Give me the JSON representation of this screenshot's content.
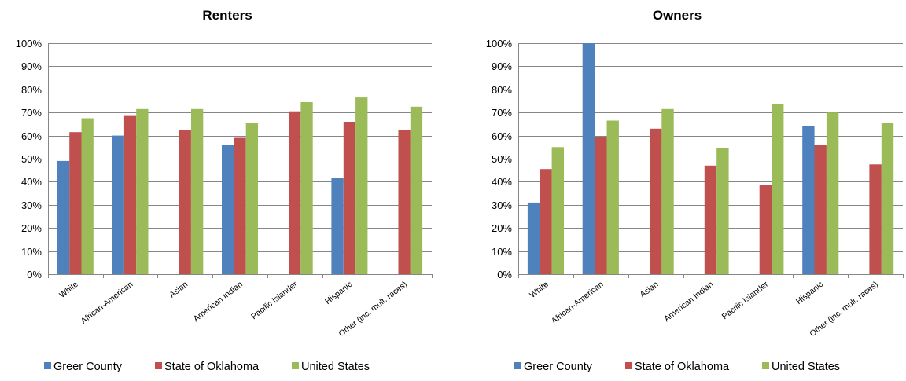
{
  "chart_data": [
    {
      "type": "bar",
      "title": "Renters",
      "categories": [
        "White",
        "African-American",
        "Asian",
        "American Indian",
        "Pacific Islander",
        "Hispanic",
        "Other (inc. mult. races)"
      ],
      "series": [
        {
          "name": "Greer County",
          "values": [
            49,
            60,
            null,
            56,
            null,
            41.5,
            null
          ]
        },
        {
          "name": "State of Oklahoma",
          "values": [
            61.5,
            68.5,
            62.5,
            59,
            70.5,
            66,
            62.5
          ]
        },
        {
          "name": "United States",
          "values": [
            67.5,
            71.5,
            71.5,
            65.5,
            74.5,
            76.5,
            72.5
          ]
        }
      ],
      "yticks": [
        "0%",
        "10%",
        "20%",
        "30%",
        "40%",
        "50%",
        "60%",
        "70%",
        "80%",
        "90%",
        "100%"
      ],
      "ylim": [
        0,
        100
      ],
      "grid": true,
      "legend": "bottom"
    },
    {
      "type": "bar",
      "title": "Owners",
      "categories": [
        "White",
        "African-American",
        "Asian",
        "American Indian",
        "Pacific Islander",
        "Hispanic",
        "Other (inc. mult. races)"
      ],
      "series": [
        {
          "name": "Greer County",
          "values": [
            31,
            100,
            null,
            null,
            null,
            64,
            null
          ]
        },
        {
          "name": "State of Oklahoma",
          "values": [
            45.5,
            59.5,
            63,
            47,
            38.5,
            56,
            47.5
          ]
        },
        {
          "name": "United States",
          "values": [
            55,
            66.5,
            71.5,
            54.5,
            73.5,
            70,
            65.5
          ]
        }
      ],
      "yticks": [
        "0%",
        "10%",
        "20%",
        "30%",
        "40%",
        "50%",
        "60%",
        "70%",
        "80%",
        "90%",
        "100%"
      ],
      "ylim": [
        0,
        100
      ],
      "grid": true,
      "legend": "bottom"
    }
  ],
  "colors": {
    "Greer County": "#4f81bd",
    "State of Oklahoma": "#c0504d",
    "United States": "#9bbb59"
  }
}
